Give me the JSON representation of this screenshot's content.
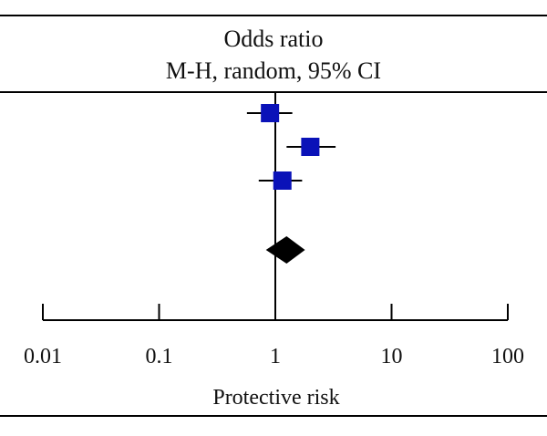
{
  "chart_data": {
    "type": "forest",
    "header": [
      "Odds ratio",
      "M-H, random, 95% CI"
    ],
    "xlabel": "Protective risk",
    "scale": "log",
    "xlim": [
      0.01,
      100
    ],
    "ticks": [
      0.01,
      0.1,
      1,
      10,
      100
    ],
    "tick_labels": [
      "0.01",
      "0.1",
      "1",
      "10",
      "100"
    ],
    "reference_line": 1,
    "studies": [
      {
        "or": 0.9,
        "lower": 0.57,
        "upper": 1.4
      },
      {
        "or": 2.0,
        "lower": 1.25,
        "upper": 3.3
      },
      {
        "or": 1.15,
        "lower": 0.72,
        "upper": 1.7
      }
    ],
    "pooled": {
      "or": 1.25,
      "lower": 0.83,
      "upper": 1.8
    },
    "colors": {
      "study_marker": "#0a12b8",
      "pooled_marker": "#000000",
      "lines": "#000000"
    }
  }
}
